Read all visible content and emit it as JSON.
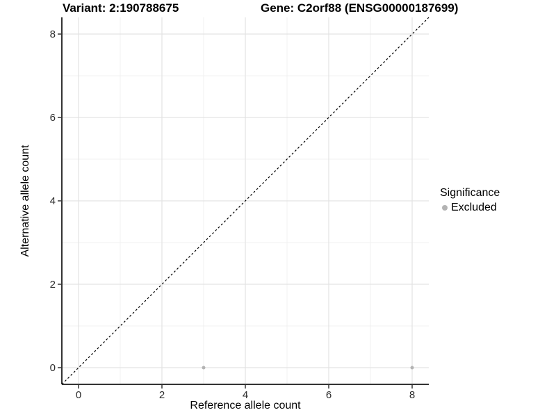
{
  "chart_data": {
    "type": "scatter",
    "titles": {
      "left": "Variant: 2:190788675",
      "right": "Gene: C2orf88 (ENSG00000187699)"
    },
    "xlabel": "Reference allele count",
    "ylabel": "Alternative allele count",
    "xlim": [
      -0.4,
      8.4
    ],
    "ylim": [
      -0.4,
      8.4
    ],
    "xticks": [
      0,
      2,
      4,
      6,
      8
    ],
    "yticks": [
      0,
      2,
      4,
      6,
      8
    ],
    "minor_gridlines_x": [
      1,
      3,
      5,
      7
    ],
    "minor_gridlines_y": [
      1,
      3,
      5,
      7
    ],
    "grid": "on",
    "identity_line": {
      "style": "dashed",
      "from": [
        -0.4,
        -0.4
      ],
      "to": [
        8.4,
        8.4
      ],
      "color": "#000000"
    },
    "series": [
      {
        "name": "Excluded",
        "color": "#b3b3b3",
        "points": [
          [
            3,
            0
          ],
          [
            8,
            0
          ]
        ]
      }
    ],
    "legend": {
      "position": "right",
      "title": "Significance",
      "items": [
        {
          "label": "Excluded",
          "color": "#b3b3b3"
        }
      ]
    },
    "colors": {
      "background": "#ffffff",
      "grid_major": "#e3e3e3",
      "grid_minor": "#eeeeee",
      "axis": "#333333",
      "tick_text": "#2b2b2b"
    }
  }
}
